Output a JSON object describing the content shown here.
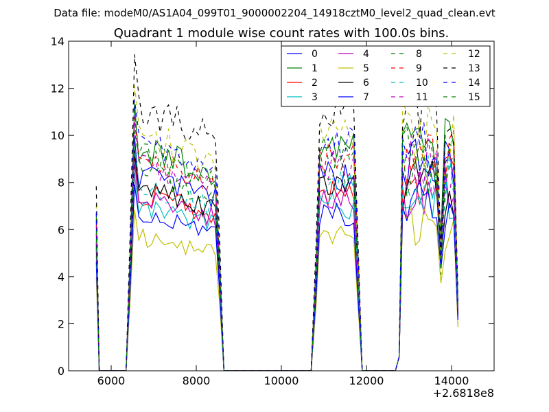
{
  "chart_data": {
    "type": "line",
    "suptitle": "Data file: modeM0/AS1A04_099T01_9000002204_14918cztM0_level2_quad_clean.evt",
    "title": "Quadrant 1 module wise count rates with 100.0s bins.",
    "xlabel": "",
    "ylabel": "",
    "x_offset_label": "+2.6818e8",
    "xlim": [
      5000,
      15000
    ],
    "ylim": [
      0,
      14
    ],
    "x_ticks": [
      6000,
      8000,
      10000,
      12000,
      14000
    ],
    "y_ticks": [
      0,
      2,
      4,
      6,
      8,
      10,
      12,
      14
    ],
    "x_tick_labels": [
      "6000",
      "8000",
      "10000",
      "12000",
      "14000"
    ],
    "y_tick_labels": [
      "0",
      "2",
      "4",
      "6",
      "8",
      "10",
      "12",
      "14"
    ],
    "legend_position": "top-right",
    "x_knots": [
      5650,
      5720,
      6350,
      6450,
      6550,
      7550,
      8480,
      8550,
      8650,
      10700,
      10820,
      10900,
      11000,
      11700,
      11800,
      11900,
      12680,
      12770,
      12850,
      12950,
      13600,
      13680,
      13750,
      13850,
      14100,
      14150
    ],
    "series": [
      {
        "name": "0",
        "color": "#0000ff",
        "dash": "solid",
        "level": 8.3,
        "late": 9.0
      },
      {
        "name": "1",
        "color": "#008000",
        "dash": "solid",
        "level": 9.5,
        "late": 9.8
      },
      {
        "name": "2",
        "color": "#ff0000",
        "dash": "solid",
        "level": 7.6,
        "late": 8.2
      },
      {
        "name": "3",
        "color": "#00bfbf",
        "dash": "solid",
        "level": 7.0,
        "late": 7.6
      },
      {
        "name": "4",
        "color": "#bf00bf",
        "dash": "solid",
        "level": 7.4,
        "late": 7.8
      },
      {
        "name": "5",
        "color": "#bfbf00",
        "dash": "solid",
        "level": 5.7,
        "late": 6.2
      },
      {
        "name": "6",
        "color": "#000000",
        "dash": "solid",
        "level": 7.8,
        "late": 8.0
      },
      {
        "name": "7",
        "color": "#0000ff",
        "dash": "solid",
        "level": 6.6,
        "late": 7.2
      },
      {
        "name": "8",
        "color": "#008000",
        "dash": "dashed",
        "level": 9.2,
        "late": 9.4
      },
      {
        "name": "9",
        "color": "#ff0000",
        "dash": "dashed",
        "level": 9.0,
        "late": 9.3
      },
      {
        "name": "10",
        "color": "#00bfbf",
        "dash": "dashed",
        "level": 7.9,
        "late": 8.4
      },
      {
        "name": "11",
        "color": "#bf00bf",
        "dash": "dashed",
        "level": 8.8,
        "late": 9.0
      },
      {
        "name": "12",
        "color": "#bfbf00",
        "dash": "dashed",
        "level": 10.1,
        "late": 10.2
      },
      {
        "name": "13",
        "color": "#000000",
        "dash": "dashed",
        "level": 11.2,
        "late": 11.4
      },
      {
        "name": "14",
        "color": "#0000ff",
        "dash": "dashed",
        "level": 9.6,
        "late": 9.9
      },
      {
        "name": "15",
        "color": "#008000",
        "dash": "dashed",
        "level": 8.5,
        "late": 8.9
      }
    ]
  }
}
